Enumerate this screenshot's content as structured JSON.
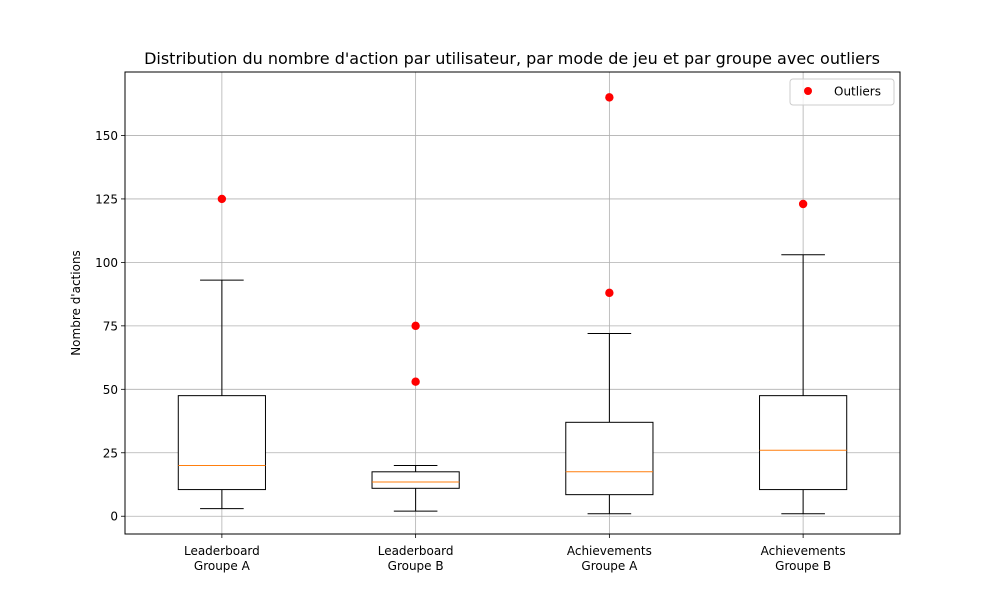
{
  "chart_data": {
    "type": "box",
    "title": "Distribution du nombre d'action par utilisateur, par mode de jeu et par groupe avec outliers",
    "xlabel": "",
    "ylabel": "Nombre d'actions",
    "ylim": [
      -7,
      175
    ],
    "yticks": [
      0,
      25,
      50,
      75,
      100,
      125,
      150
    ],
    "grid": true,
    "legend": {
      "position": "top-right",
      "entries": [
        {
          "label": "Outliers",
          "color": "#ff0000",
          "marker": "circle"
        }
      ]
    },
    "colors": {
      "box": "#000000",
      "median": "#ff7f0e",
      "outlier": "#ff0000",
      "grid": "#b0b0b0"
    },
    "categories": [
      [
        "Leaderboard",
        "Groupe A"
      ],
      [
        "Leaderboard",
        "Groupe B"
      ],
      [
        "Achievements",
        "Groupe A"
      ],
      [
        "Achievements",
        "Groupe B"
      ]
    ],
    "boxes": [
      {
        "whisker_low": 3,
        "q1": 10.5,
        "median": 20,
        "q3": 47.5,
        "whisker_high": 93,
        "outliers": [
          125
        ]
      },
      {
        "whisker_low": 2,
        "q1": 11,
        "median": 13.5,
        "q3": 17.5,
        "whisker_high": 20,
        "outliers": [
          53,
          75
        ]
      },
      {
        "whisker_low": 1,
        "q1": 8.5,
        "median": 17.5,
        "q3": 37,
        "whisker_high": 72,
        "outliers": [
          88,
          165
        ]
      },
      {
        "whisker_low": 1,
        "q1": 10.5,
        "median": 26,
        "q3": 47.5,
        "whisker_high": 103,
        "outliers": [
          123
        ]
      }
    ]
  }
}
